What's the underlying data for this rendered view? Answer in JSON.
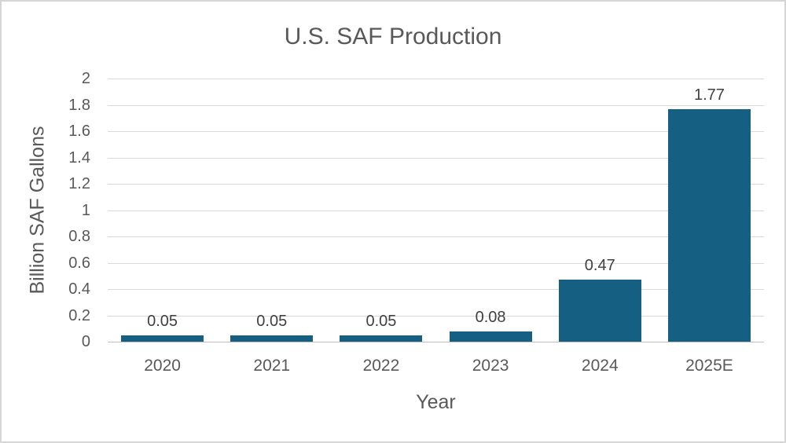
{
  "chart_data": {
    "type": "bar",
    "title": "U.S. SAF Production",
    "xlabel": "Year",
    "ylabel": "Billion SAF Gallons",
    "categories": [
      "2020",
      "2021",
      "2022",
      "2023",
      "2024",
      "2025E"
    ],
    "values": [
      0.05,
      0.05,
      0.05,
      0.08,
      0.47,
      1.77
    ],
    "data_labels": [
      "0.05",
      "0.05",
      "0.05",
      "0.08",
      "0.47",
      "1.77"
    ],
    "ylim": [
      0,
      2
    ],
    "y_ticks": [
      "2",
      "1.8",
      "1.6",
      "1.4",
      "1.2",
      "1",
      "0.8",
      "0.6",
      "0.4",
      "0.2",
      "0"
    ],
    "grid": true,
    "legend": "none",
    "colors": {
      "bar": "#156082",
      "gridline": "#d9d9d9",
      "axis_line": "#c0c0c0",
      "title_text": "#595959",
      "axis_text": "#595959",
      "data_label_text": "#404040",
      "frame_border": "#d6d6d6",
      "background": "#ffffff"
    }
  }
}
